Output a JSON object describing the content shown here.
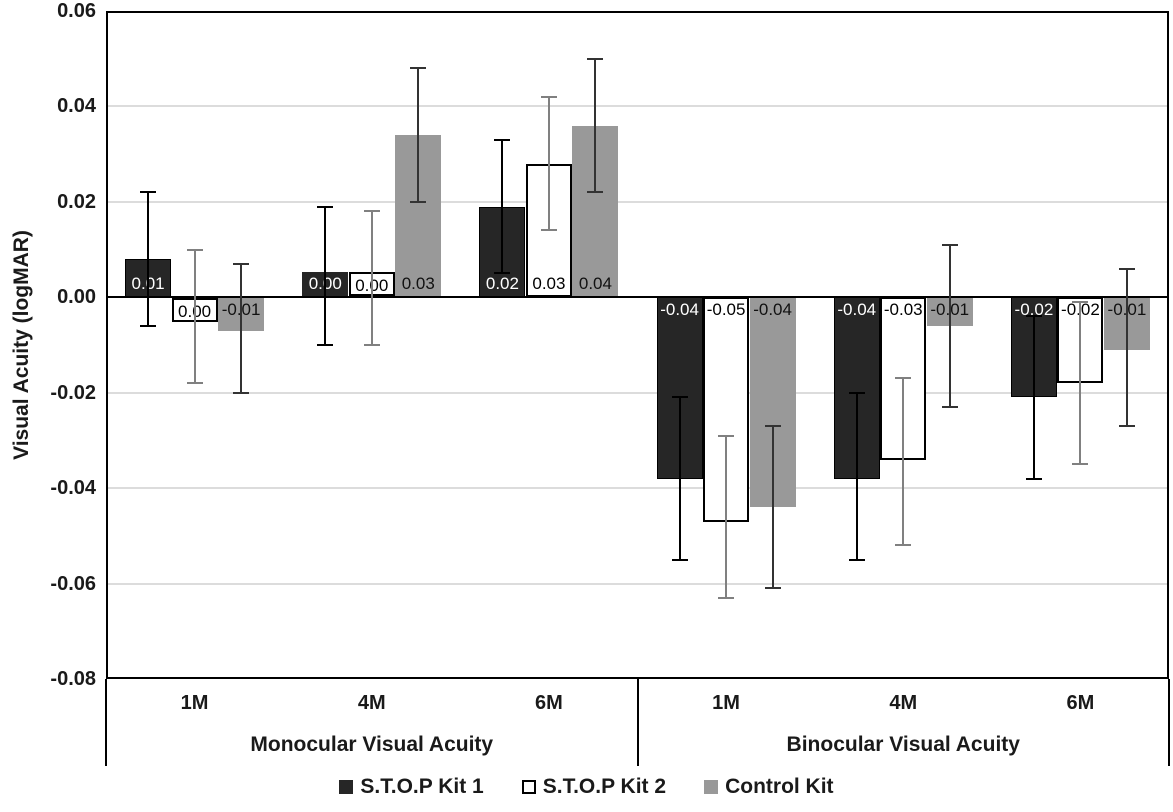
{
  "chart_data": {
    "type": "bar",
    "title": "",
    "ylabel": "Visual Acuity (logMAR)",
    "ylim": [
      -0.08,
      0.06
    ],
    "ytick_step": 0.02,
    "ytick_labels": [
      "0.06",
      "0.04",
      "0.02",
      "0.00",
      "-0.02",
      "-0.04",
      "-0.06",
      "-0.08"
    ],
    "gridline_values": [
      0.04,
      0.02,
      -0.02,
      -0.04,
      -0.06
    ],
    "grid": true,
    "legend_position": "bottom",
    "groups": [
      {
        "label": "Monocular Visual Acuity",
        "categories": [
          "1M",
          "4M",
          "6M"
        ]
      },
      {
        "label": "Binocular Visual Acuity",
        "categories": [
          "1M",
          "4M",
          "6M"
        ]
      }
    ],
    "categories_flat": [
      "1M",
      "4M",
      "6M",
      "1M",
      "4M",
      "6M"
    ],
    "series": [
      {
        "name": "S.T.O.P Kit 1",
        "fill": "#262626",
        "border_color": "#000000",
        "outlined": false,
        "text_color": "#ffffff",
        "error_color": "#000000",
        "values": [
          0.008,
          0.004,
          0.019,
          -0.038,
          -0.038,
          -0.021
        ],
        "labels": [
          "0.01",
          "0.00",
          "0.02",
          "-0.04",
          "-0.04",
          "-0.02"
        ],
        "error_low": [
          -0.006,
          -0.01,
          0.005,
          -0.055,
          -0.055,
          -0.038
        ],
        "error_high": [
          0.022,
          0.019,
          0.033,
          -0.021,
          -0.02,
          -0.004
        ]
      },
      {
        "name": "S.T.O.P Kit 2",
        "fill": "#ffffff",
        "border_color": "#000000",
        "outlined": true,
        "text_color": "#000000",
        "error_color": "#808080",
        "values": [
          -0.003,
          0.004,
          0.028,
          -0.047,
          -0.034,
          -0.018
        ],
        "labels": [
          "0.00",
          "0.00",
          "0.03",
          "-0.05",
          "-0.03",
          "-0.02"
        ],
        "error_low": [
          -0.018,
          -0.01,
          0.014,
          -0.063,
          -0.052,
          -0.035
        ],
        "error_high": [
          0.01,
          0.018,
          0.042,
          -0.029,
          -0.017,
          -0.001
        ]
      },
      {
        "name": "Control Kit",
        "fill": "#999999",
        "border_color": "#999999",
        "outlined": false,
        "text_color": "#111111",
        "error_color": "#333333",
        "values": [
          -0.007,
          0.034,
          0.036,
          -0.044,
          -0.006,
          -0.011
        ],
        "labels": [
          "-0.01",
          "0.03",
          "0.04",
          "-0.04",
          "-0.01",
          "-0.01"
        ],
        "error_low": [
          -0.02,
          0.02,
          0.022,
          -0.061,
          -0.023,
          -0.027
        ],
        "error_high": [
          0.007,
          0.048,
          0.05,
          -0.027,
          0.011,
          0.006
        ]
      }
    ],
    "colors": {
      "grid": "#dcdcdc",
      "axis": "#000000",
      "background": "#ffffff"
    }
  }
}
